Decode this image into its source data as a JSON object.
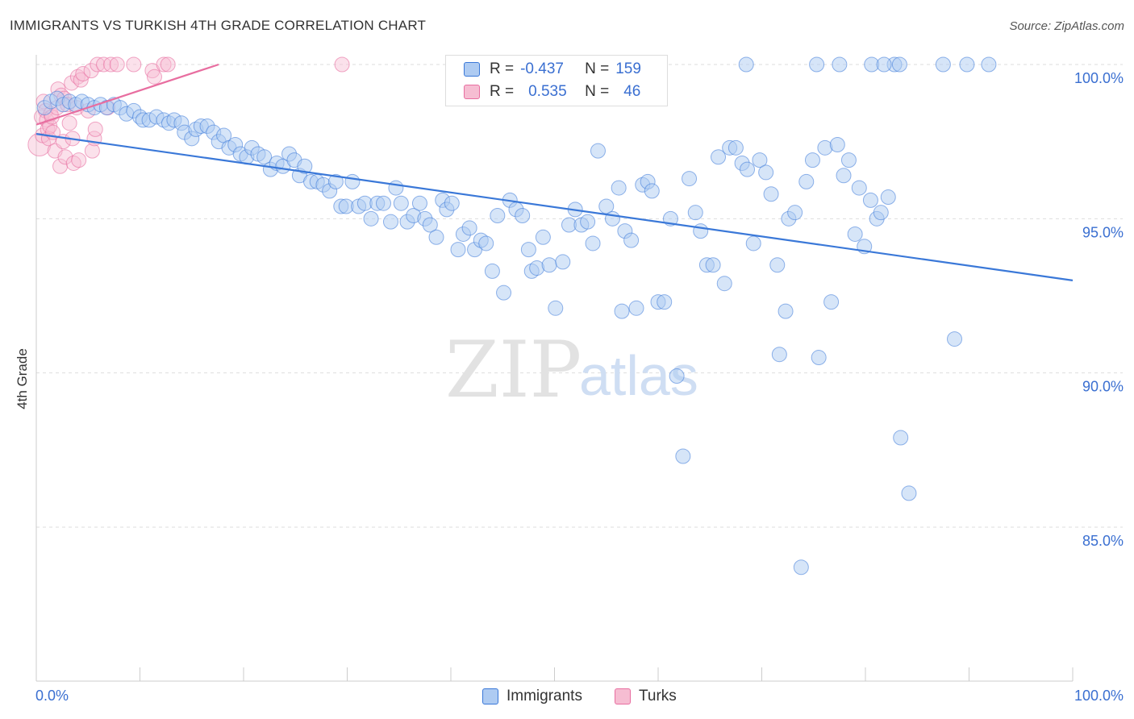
{
  "title": "IMMIGRANTS VS TURKISH 4TH GRADE CORRELATION CHART",
  "source": "Source: ZipAtlas.com",
  "watermark": {
    "zip": "ZIP",
    "atlas": "atlas"
  },
  "colors": {
    "blue": "#3a78d8",
    "blue_fill": "#aecbf2",
    "pink": "#e86ea0",
    "pink_fill": "#f6bdd2",
    "axis_text": "#3a6fd1",
    "grid": "#dddddd"
  },
  "legend": {
    "rows": [
      {
        "r_label": "R =",
        "r_value": "-0.437",
        "n_label": "N =",
        "n_value": "159"
      },
      {
        "r_label": "R =",
        "r_value": "0.535",
        "n_label": "N =",
        "n_value": "46"
      }
    ]
  },
  "bottom_legend": {
    "immigrants": "Immigrants",
    "turks": "Turks"
  },
  "chart_data": {
    "type": "scatter",
    "title": "IMMIGRANTS VS TURKISH 4TH GRADE CORRELATION CHART",
    "xlabel": "",
    "ylabel": "4th Grade",
    "xlim": [
      0,
      100
    ],
    "ylim": [
      80.2,
      100.5
    ],
    "x_tick_labels": [
      "0.0%",
      "100.0%"
    ],
    "y_ticks": [
      85,
      90,
      95,
      100
    ],
    "y_tick_labels": [
      "85.0%",
      "90.0%",
      "95.0%",
      "100.0%"
    ],
    "grid": true,
    "series": [
      {
        "name": "Immigrants",
        "r": -0.437,
        "n": 159,
        "trend": {
          "x0": 0,
          "y0": 97.75,
          "x1": 100,
          "y1": 93.0
        },
        "points": [
          [
            0.8,
            98.6
          ],
          [
            1.4,
            98.8
          ],
          [
            2.0,
            98.9
          ],
          [
            2.6,
            98.7
          ],
          [
            3.2,
            98.8
          ],
          [
            3.8,
            98.7
          ],
          [
            4.4,
            98.8
          ],
          [
            5.0,
            98.7
          ],
          [
            5.6,
            98.6
          ],
          [
            6.2,
            98.7
          ],
          [
            6.8,
            98.6
          ],
          [
            7.5,
            98.7
          ],
          [
            8.1,
            98.6
          ],
          [
            8.7,
            98.4
          ],
          [
            9.4,
            98.5
          ],
          [
            10.0,
            98.3
          ],
          [
            10.3,
            98.2
          ],
          [
            10.9,
            98.2
          ],
          [
            11.6,
            98.3
          ],
          [
            12.3,
            98.2
          ],
          [
            12.8,
            98.1
          ],
          [
            13.3,
            98.2
          ],
          [
            14.0,
            98.1
          ],
          [
            14.3,
            97.8
          ],
          [
            15.0,
            97.6
          ],
          [
            15.4,
            97.9
          ],
          [
            15.9,
            98.0
          ],
          [
            16.5,
            98.0
          ],
          [
            17.1,
            97.8
          ],
          [
            17.6,
            97.5
          ],
          [
            18.1,
            97.7
          ],
          [
            18.6,
            97.3
          ],
          [
            19.2,
            97.4
          ],
          [
            19.7,
            97.1
          ],
          [
            20.3,
            97.0
          ],
          [
            20.8,
            97.3
          ],
          [
            21.4,
            97.1
          ],
          [
            22.0,
            97.0
          ],
          [
            22.6,
            96.6
          ],
          [
            23.2,
            96.8
          ],
          [
            23.8,
            96.7
          ],
          [
            24.4,
            97.1
          ],
          [
            24.9,
            96.9
          ],
          [
            25.4,
            96.4
          ],
          [
            25.9,
            96.7
          ],
          [
            26.5,
            96.2
          ],
          [
            27.1,
            96.2
          ],
          [
            27.7,
            96.1
          ],
          [
            28.3,
            95.9
          ],
          [
            28.9,
            96.2
          ],
          [
            29.4,
            95.4
          ],
          [
            29.9,
            95.4
          ],
          [
            30.5,
            96.2
          ],
          [
            31.1,
            95.4
          ],
          [
            31.7,
            95.5
          ],
          [
            32.3,
            95.0
          ],
          [
            32.9,
            95.5
          ],
          [
            33.5,
            95.5
          ],
          [
            34.2,
            94.9
          ],
          [
            34.7,
            96.0
          ],
          [
            35.2,
            95.5
          ],
          [
            35.8,
            94.9
          ],
          [
            36.4,
            95.1
          ],
          [
            37.0,
            95.5
          ],
          [
            37.5,
            95.0
          ],
          [
            38.0,
            94.8
          ],
          [
            38.6,
            94.4
          ],
          [
            39.2,
            95.6
          ],
          [
            39.6,
            95.3
          ],
          [
            40.1,
            95.5
          ],
          [
            40.7,
            94.0
          ],
          [
            41.2,
            94.5
          ],
          [
            41.8,
            94.7
          ],
          [
            42.3,
            94.0
          ],
          [
            42.9,
            94.3
          ],
          [
            43.4,
            94.2
          ],
          [
            44.0,
            93.3
          ],
          [
            44.5,
            95.1
          ],
          [
            45.1,
            92.6
          ],
          [
            45.7,
            95.6
          ],
          [
            46.3,
            95.3
          ],
          [
            46.9,
            95.1
          ],
          [
            47.5,
            94.0
          ],
          [
            47.8,
            93.3
          ],
          [
            48.3,
            93.4
          ],
          [
            48.9,
            94.4
          ],
          [
            49.5,
            93.5
          ],
          [
            50.1,
            92.1
          ],
          [
            50.8,
            93.6
          ],
          [
            51.4,
            94.8
          ],
          [
            52.0,
            95.3
          ],
          [
            52.6,
            94.8
          ],
          [
            53.2,
            94.9
          ],
          [
            53.7,
            94.2
          ],
          [
            54.2,
            97.2
          ],
          [
            55.0,
            95.4
          ],
          [
            55.6,
            95.0
          ],
          [
            56.2,
            96.0
          ],
          [
            56.8,
            94.6
          ],
          [
            57.4,
            94.3
          ],
          [
            57.9,
            92.1
          ],
          [
            58.5,
            96.1
          ],
          [
            59.0,
            96.2
          ],
          [
            59.4,
            95.9
          ],
          [
            60.0,
            92.3
          ],
          [
            60.6,
            92.3
          ],
          [
            61.2,
            95.0
          ],
          [
            61.8,
            89.9
          ],
          [
            62.4,
            87.3
          ],
          [
            63.0,
            96.3
          ],
          [
            63.6,
            95.2
          ],
          [
            64.1,
            94.6
          ],
          [
            64.7,
            93.5
          ],
          [
            65.3,
            93.5
          ],
          [
            65.8,
            97.0
          ],
          [
            66.4,
            92.9
          ],
          [
            66.9,
            97.3
          ],
          [
            67.5,
            97.3
          ],
          [
            68.1,
            96.8
          ],
          [
            68.6,
            96.6
          ],
          [
            69.2,
            94.2
          ],
          [
            69.8,
            96.9
          ],
          [
            70.4,
            96.5
          ],
          [
            70.9,
            95.8
          ],
          [
            71.5,
            93.5
          ],
          [
            71.7,
            90.6
          ],
          [
            72.6,
            95.0
          ],
          [
            73.2,
            95.2
          ],
          [
            73.8,
            83.7
          ],
          [
            74.3,
            96.2
          ],
          [
            74.9,
            96.9
          ],
          [
            75.5,
            90.5
          ],
          [
            76.1,
            97.3
          ],
          [
            76.7,
            92.3
          ],
          [
            77.3,
            97.4
          ],
          [
            77.9,
            96.4
          ],
          [
            78.4,
            96.9
          ],
          [
            79.0,
            94.5
          ],
          [
            79.4,
            96.0
          ],
          [
            79.9,
            94.1
          ],
          [
            80.5,
            95.6
          ],
          [
            81.1,
            95.0
          ],
          [
            81.5,
            95.2
          ],
          [
            82.2,
            95.7
          ],
          [
            82.8,
            100.0
          ],
          [
            83.4,
            87.9
          ],
          [
            84.2,
            86.1
          ],
          [
            68.5,
            100.0
          ],
          [
            75.3,
            100.0
          ],
          [
            77.5,
            100.0
          ],
          [
            80.6,
            100.0
          ],
          [
            81.8,
            100.0
          ],
          [
            83.3,
            100.0
          ],
          [
            87.5,
            100.0
          ],
          [
            89.8,
            100.0
          ],
          [
            91.9,
            100.0
          ],
          [
            88.6,
            91.1
          ],
          [
            72.3,
            92.0
          ],
          [
            56.5,
            92.0
          ]
        ]
      },
      {
        "name": "Turks",
        "r": 0.535,
        "n": 46,
        "trend": {
          "x0": 0,
          "y0": 98.05,
          "x1": 17.6,
          "y1": 100.0
        },
        "points": [
          [
            0.3,
            97.4
          ],
          [
            0.5,
            98.3
          ],
          [
            0.6,
            97.7
          ],
          [
            0.7,
            98.8
          ],
          [
            0.9,
            98.5
          ],
          [
            1.0,
            98.2
          ],
          [
            1.1,
            97.9
          ],
          [
            1.2,
            97.6
          ],
          [
            1.3,
            98.0
          ],
          [
            1.4,
            98.4
          ],
          [
            1.5,
            98.3
          ],
          [
            1.6,
            97.8
          ],
          [
            1.8,
            97.2
          ],
          [
            2.0,
            98.6
          ],
          [
            2.1,
            99.2
          ],
          [
            2.3,
            96.7
          ],
          [
            2.4,
            99.0
          ],
          [
            2.6,
            97.5
          ],
          [
            2.7,
            98.9
          ],
          [
            2.8,
            97.0
          ],
          [
            3.0,
            98.7
          ],
          [
            3.2,
            98.1
          ],
          [
            3.4,
            99.4
          ],
          [
            3.5,
            97.6
          ],
          [
            3.6,
            96.8
          ],
          [
            3.9,
            98.6
          ],
          [
            4.0,
            99.6
          ],
          [
            4.1,
            96.9
          ],
          [
            4.3,
            99.5
          ],
          [
            4.5,
            99.7
          ],
          [
            5.0,
            98.5
          ],
          [
            5.3,
            99.8
          ],
          [
            5.4,
            97.2
          ],
          [
            5.6,
            97.6
          ],
          [
            5.7,
            97.9
          ],
          [
            5.9,
            100.0
          ],
          [
            6.5,
            100.0
          ],
          [
            6.9,
            98.6
          ],
          [
            7.2,
            100.0
          ],
          [
            7.8,
            100.0
          ],
          [
            9.4,
            100.0
          ],
          [
            11.2,
            99.8
          ],
          [
            11.4,
            99.6
          ],
          [
            12.3,
            100.0
          ],
          [
            12.7,
            100.0
          ],
          [
            29.5,
            100.0
          ]
        ]
      }
    ]
  }
}
